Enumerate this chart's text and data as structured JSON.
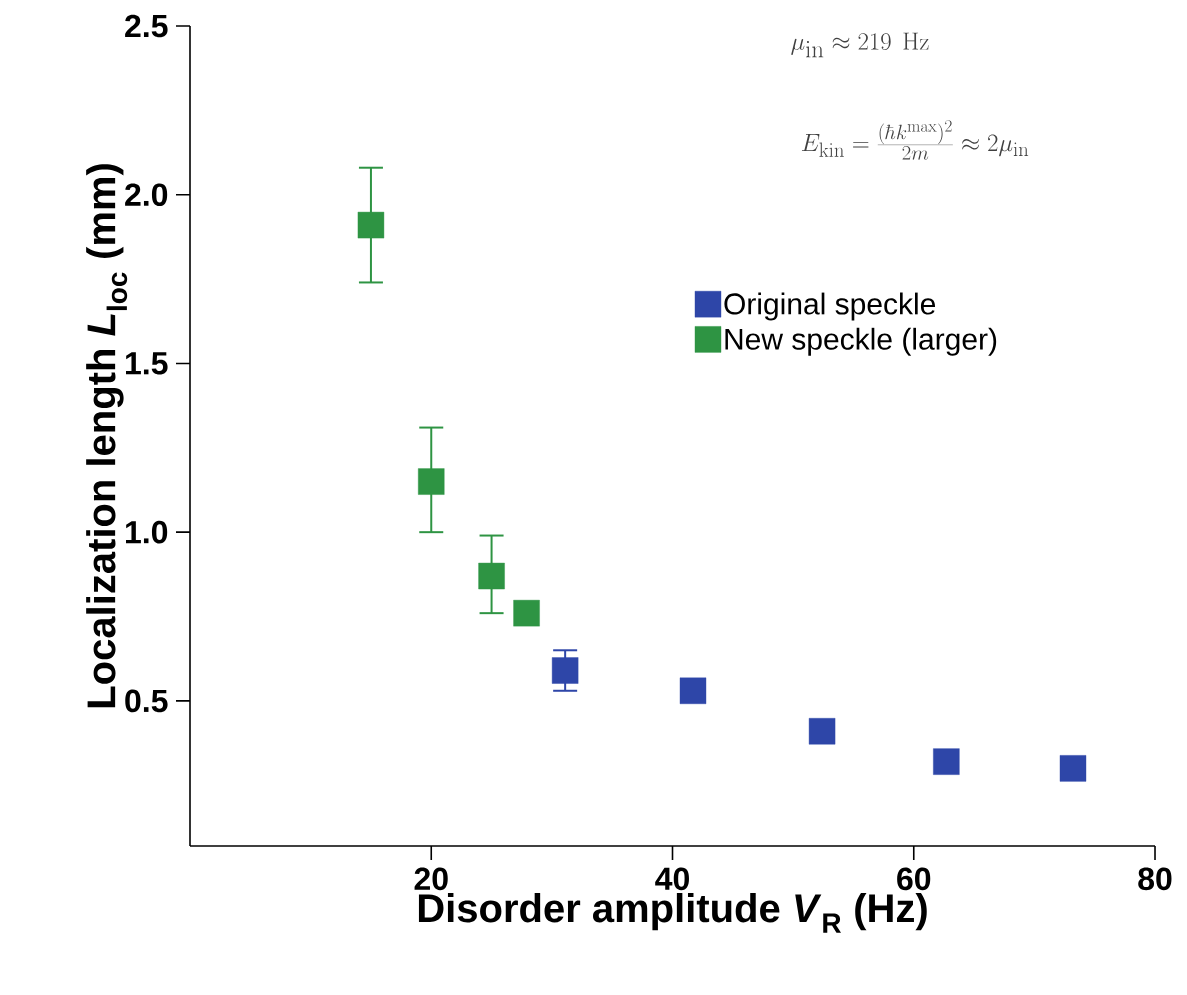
{
  "chart_data": {
    "type": "scatter",
    "xlabel": "Disorder amplitude *V*$_{R}$ (Hz)",
    "ylabel": "Localization length *L*$_{loc}$ (mm)",
    "annotations": [
      "\\mu_{\\rm in} \\approx 219\\ \\mathrm{Hz}",
      "E_{\\rm kin} = \\frac{(\\hbar k^{\\rm max})^2}{2m} \\approx 2\\mu_{\\rm in}"
    ],
    "series": [
      {
        "name": "Original speckle",
        "color": "#2e46a8",
        "x": [
          31.1,
          41.7,
          52.4,
          62.7,
          73.2
        ],
        "values": [
          0.59,
          0.53,
          0.41,
          0.32,
          0.3
        ],
        "errors": [
          0.06,
          0.03,
          null,
          null,
          null
        ]
      },
      {
        "name": "New speckle (larger)",
        "color": "#2e9443",
        "x": [
          15.0,
          20.0,
          25.0,
          27.9
        ],
        "values": [
          1.91,
          1.15,
          0.87,
          0.76
        ],
        "errors": [
          [
            1.74,
            2.08
          ],
          [
            1.0,
            1.31
          ],
          [
            0.76,
            0.99
          ],
          null
        ]
      }
    ],
    "xlim": [
      0,
      80
    ],
    "xticks": [
      20,
      40,
      60,
      80
    ],
    "ylim": [
      0.07,
      2.5
    ],
    "yticks": [
      0.5,
      {
        "value": 1.0,
        "label": "1.0"
      },
      1.5,
      {
        "value": 2.0,
        "label": "2.0"
      },
      2.5
    ],
    "marker": "square",
    "legend": "right",
    "grid": false
  }
}
